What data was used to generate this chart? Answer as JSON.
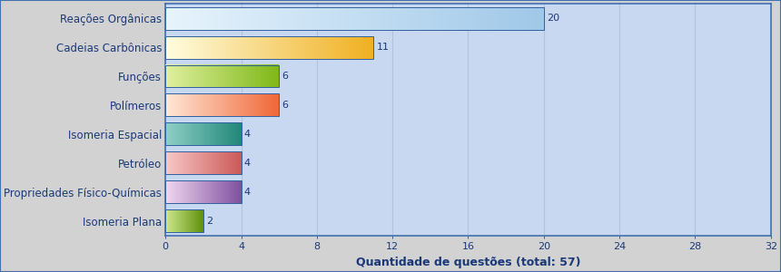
{
  "categories": [
    "Reações Orgânicas",
    "Cadeias Carbônicas",
    "Funções",
    "Polímeros",
    "Isomeria Espacial",
    "Petróleo",
    "Propriedades Físico-Químicas",
    "Isomeria Plana"
  ],
  "values": [
    20,
    11,
    6,
    6,
    4,
    4,
    4,
    2
  ],
  "bar_colors_left": [
    "#e8f4fc",
    "#fffde0",
    "#e0f0a0",
    "#ffe8d8",
    "#90d0c8",
    "#f8c8c8",
    "#f0d8f0",
    "#d0e890"
  ],
  "bar_colors_right": [
    "#a0c8e8",
    "#f0b020",
    "#80b818",
    "#f06838",
    "#208878",
    "#cc5858",
    "#8050a0",
    "#60900a"
  ],
  "value_labels": [
    "20",
    "11",
    "6",
    "6",
    "4",
    "4",
    "4",
    "2"
  ],
  "xlabel": "Quantidade de questões (total: 57)",
  "xlim": [
    0,
    32
  ],
  "xticks": [
    0,
    4,
    8,
    12,
    16,
    20,
    24,
    28,
    32
  ],
  "figure_bg": "#d2d2d2",
  "plot_bg": "#c8d8f0",
  "grid_color": "#b0c4de",
  "outer_border_color": "#4070b0",
  "bar_edge_color": "#3060a0",
  "label_color": "#1a3878",
  "tick_color": "#1a3878",
  "xlabel_color": "#1a3878",
  "bar_height": 0.78,
  "bar_edge_width": 0.7,
  "label_fontsize": 8.5,
  "tick_fontsize": 8,
  "xlabel_fontsize": 9
}
